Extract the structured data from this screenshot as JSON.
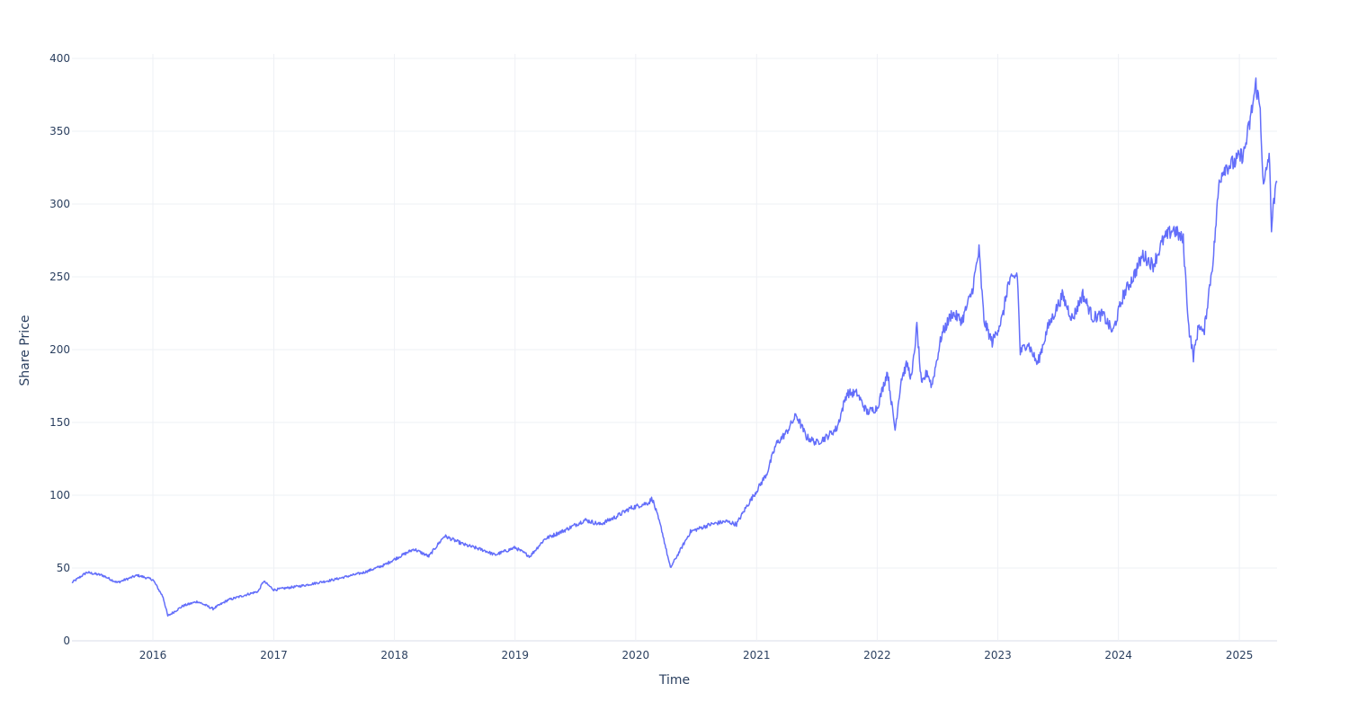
{
  "chart_data": {
    "type": "line",
    "title": "",
    "xlabel": "Time",
    "ylabel": "Share Price",
    "x_range": [
      "2015-05-01",
      "2025-04-25"
    ],
    "ylim": [
      0,
      400
    ],
    "x_ticks": [
      "2016",
      "2017",
      "2018",
      "2019",
      "2020",
      "2021",
      "2022",
      "2023",
      "2024",
      "2025"
    ],
    "y_ticks": [
      0,
      50,
      100,
      150,
      200,
      250,
      300,
      350,
      400
    ],
    "grid": true,
    "legend": "none",
    "series_color": "#636efa",
    "series": [
      {
        "x": [
          "2015-05-01",
          "2015-06-15",
          "2015-08-01",
          "2015-09-15",
          "2015-11-15",
          "2016-01-01",
          "2016-02-01",
          "2016-02-15",
          "2016-04-01",
          "2016-05-15",
          "2016-07-01",
          "2016-08-15",
          "2016-10-15",
          "2016-11-15",
          "2016-12-01",
          "2017-01-01",
          "2017-04-01",
          "2017-07-01",
          "2017-10-01",
          "2017-12-01",
          "2018-01-01",
          "2018-03-01",
          "2018-04-15",
          "2018-06-01",
          "2018-08-01",
          "2018-10-01",
          "2018-11-01",
          "2019-01-01",
          "2019-02-15",
          "2019-04-01",
          "2019-06-01",
          "2019-08-01",
          "2019-09-15",
          "2019-11-01",
          "2019-12-15",
          "2020-02-10",
          "2020-02-20",
          "2020-03-20",
          "2020-04-15",
          "2020-06-15",
          "2020-08-15",
          "2020-10-01",
          "2020-11-01",
          "2020-12-01",
          "2021-01-01",
          "2021-02-01",
          "2021-03-01",
          "2021-04-01",
          "2021-05-01",
          "2021-06-01",
          "2021-07-01",
          "2021-08-01",
          "2021-09-01",
          "2021-10-01",
          "2021-11-01",
          "2021-12-01",
          "2022-01-01",
          "2022-02-01",
          "2022-02-24",
          "2022-03-15",
          "2022-04-01",
          "2022-04-15",
          "2022-05-01",
          "2022-05-15",
          "2022-06-01",
          "2022-06-15",
          "2022-07-15",
          "2022-08-15",
          "2022-09-15",
          "2022-10-15",
          "2022-11-05",
          "2022-11-20",
          "2022-12-15",
          "2023-01-15",
          "2023-02-01",
          "2023-03-01",
          "2023-03-10",
          "2023-04-01",
          "2023-05-01",
          "2023-06-01",
          "2023-07-01",
          "2023-07-15",
          "2023-08-15",
          "2023-09-15",
          "2023-10-15",
          "2023-11-15",
          "2023-12-15",
          "2024-01-15",
          "2024-02-15",
          "2024-03-15",
          "2024-04-15",
          "2024-05-15",
          "2024-06-15",
          "2024-07-15",
          "2024-08-01",
          "2024-08-15",
          "2024-09-01",
          "2024-09-15",
          "2024-10-01",
          "2024-10-15",
          "2024-11-01",
          "2024-11-15",
          "2024-12-15",
          "2025-01-15",
          "2025-02-01",
          "2025-02-20",
          "2025-03-05",
          "2025-03-15",
          "2025-04-01",
          "2025-04-08",
          "2025-04-15",
          "2025-04-25"
        ],
        "y": [
          40,
          47,
          45,
          40,
          45,
          42,
          30,
          17,
          24,
          27,
          22,
          28,
          32,
          34,
          41,
          35,
          38,
          42,
          47,
          52,
          56,
          63,
          58,
          72,
          66,
          62,
          59,
          64,
          58,
          70,
          76,
          83,
          80,
          85,
          91,
          95,
          98,
          76,
          50,
          75,
          80,
          82,
          80,
          92,
          103,
          115,
          135,
          143,
          155,
          140,
          136,
          140,
          146,
          170,
          170,
          157,
          160,
          185,
          145,
          180,
          190,
          180,
          216,
          175,
          185,
          175,
          210,
          225,
          220,
          240,
          268,
          220,
          205,
          222,
          245,
          252,
          198,
          205,
          190,
          215,
          230,
          237,
          221,
          238,
          222,
          224,
          212,
          237,
          250,
          265,
          258,
          275,
          283,
          275,
          215,
          195,
          218,
          210,
          240,
          265,
          316,
          325,
          328,
          335,
          355,
          382,
          365,
          310,
          335,
          285,
          300,
          315
        ]
      }
    ]
  }
}
